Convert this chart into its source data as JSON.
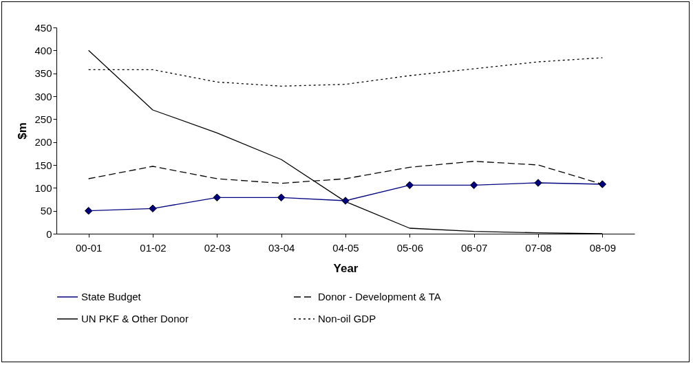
{
  "chart_data": {
    "type": "line",
    "xlabel": "Year",
    "ylabel": "$m",
    "categories": [
      "00-01",
      "01-02",
      "02-03",
      "03-04",
      "04-05",
      "05-06",
      "06-07",
      "07-08",
      "08-09"
    ],
    "ylim": [
      0,
      450
    ],
    "yticks": [
      0,
      50,
      100,
      150,
      200,
      250,
      300,
      350,
      400,
      450
    ],
    "grid": false,
    "legend": "bottom",
    "series": [
      {
        "name": "State Budget",
        "color": "#000080",
        "marker": "diamond",
        "line_style": "solid",
        "values": [
          50,
          55,
          79,
          79,
          72,
          106,
          106,
          111,
          108
        ]
      },
      {
        "name": "Donor - Development & TA",
        "color": "#000000",
        "line_style": "dashed",
        "values": [
          120,
          147,
          120,
          110,
          120,
          145,
          158,
          150,
          108
        ]
      },
      {
        "name": "UN PKF & Other Donor",
        "color": "#000000",
        "line_style": "solid",
        "values": [
          400,
          270,
          220,
          162,
          70,
          12,
          5,
          2,
          0
        ]
      },
      {
        "name": "Non-oil GDP",
        "color": "#000000",
        "line_style": "dotted",
        "values": [
          358,
          358,
          331,
          322,
          326,
          345,
          360,
          375,
          384
        ]
      }
    ]
  }
}
